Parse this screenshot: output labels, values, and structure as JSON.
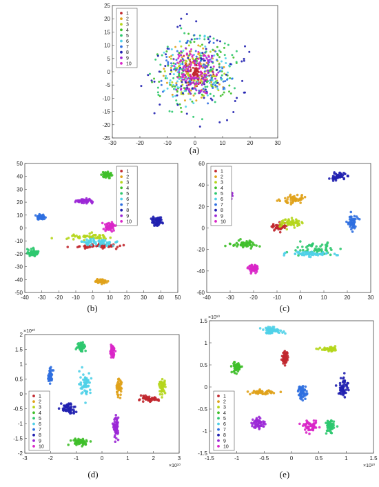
{
  "legend_labels": [
    "1",
    "2",
    "3",
    "4",
    "5",
    "6",
    "7",
    "8",
    "9",
    "10"
  ],
  "colors": [
    "#c1272d",
    "#e0a21b",
    "#b5d61c",
    "#3fbf2a",
    "#2ec86f",
    "#4fd0e8",
    "#2f6fe0",
    "#2020b0",
    "#9b27d6",
    "#d926c8"
  ],
  "chart_data": [
    {
      "type": "scatter",
      "panel_label": "(a)",
      "xlim": [
        -30,
        30
      ],
      "ylim": [
        -25,
        25
      ],
      "xticks": [
        -30,
        -20,
        -10,
        0,
        10,
        20,
        30
      ],
      "yticks": [
        25,
        20,
        15,
        10,
        5,
        0,
        -5,
        -10,
        -15,
        -20,
        -25
      ],
      "x_exponent": "",
      "y_exponent": "",
      "legend_position": "top-left",
      "layout": "radial",
      "clusters": [
        {
          "label": "1",
          "center": [
            0,
            0
          ],
          "radius": 3
        },
        {
          "label": "2",
          "center": [
            0,
            0
          ],
          "radius": 11
        },
        {
          "label": "3",
          "center": [
            0,
            0
          ],
          "radius": 10
        },
        {
          "label": "4",
          "center": [
            0,
            0
          ],
          "radius": 15
        },
        {
          "label": "5",
          "center": [
            0,
            0
          ],
          "radius": 17
        },
        {
          "label": "6",
          "center": [
            0,
            0
          ],
          "radius": 13
        },
        {
          "label": "7",
          "center": [
            0,
            0
          ],
          "radius": 13
        },
        {
          "label": "8",
          "center": [
            0,
            0
          ],
          "radius": 20
        },
        {
          "label": "9",
          "center": [
            0,
            0
          ],
          "radius": 9
        },
        {
          "label": "10",
          "center": [
            0,
            0
          ],
          "radius": 8
        }
      ]
    },
    {
      "type": "scatter",
      "panel_label": "(b)",
      "xlim": [
        -40,
        50
      ],
      "ylim": [
        -50,
        50
      ],
      "xticks": [
        -40,
        -30,
        -20,
        -10,
        0,
        10,
        20,
        30,
        40,
        50
      ],
      "yticks": [
        50,
        40,
        30,
        20,
        10,
        0,
        -10,
        -20,
        -30,
        -40,
        -50
      ],
      "x_exponent": "",
      "y_exponent": "",
      "legend_position": "top-right",
      "clusters": [
        {
          "label": "1",
          "center": [
            2,
            -14
          ],
          "spread": [
            12,
            1.5
          ]
        },
        {
          "label": "2",
          "center": [
            5,
            -41
          ],
          "spread": [
            3,
            1.5
          ]
        },
        {
          "label": "3",
          "center": [
            -2,
            -7
          ],
          "spread": [
            10,
            2
          ]
        },
        {
          "label": "4",
          "center": [
            8,
            41
          ],
          "spread": [
            3,
            2
          ]
        },
        {
          "label": "5",
          "center": [
            -35,
            -19
          ],
          "spread": [
            4,
            3
          ]
        },
        {
          "label": "6",
          "center": [
            4,
            -11
          ],
          "spread": [
            10,
            2
          ]
        },
        {
          "label": "7",
          "center": [
            -31,
            8
          ],
          "spread": [
            2.5,
            2
          ]
        },
        {
          "label": "8",
          "center": [
            38,
            5
          ],
          "spread": [
            3,
            3
          ]
        },
        {
          "label": "9",
          "center": [
            -6,
            21
          ],
          "spread": [
            5,
            1.5
          ]
        },
        {
          "label": "10",
          "center": [
            10,
            1
          ],
          "spread": [
            3,
            3
          ]
        }
      ]
    },
    {
      "type": "scatter",
      "panel_label": "(c)",
      "xlim": [
        -40,
        30
      ],
      "ylim": [
        -60,
        60
      ],
      "xticks": [
        -40,
        -30,
        -20,
        -10,
        0,
        10,
        20,
        30
      ],
      "yticks": [
        60,
        40,
        20,
        0,
        -20,
        -40,
        -60
      ],
      "x_exponent": "",
      "y_exponent": "",
      "legend_position": "top-left",
      "clusters": [
        {
          "label": "1",
          "center": [
            -9,
            1
          ],
          "spread": [
            2.5,
            3
          ]
        },
        {
          "label": "2",
          "center": [
            -3,
            27
          ],
          "spread": [
            4,
            4
          ]
        },
        {
          "label": "3",
          "center": [
            -4,
            5
          ],
          "spread": [
            4,
            3
          ]
        },
        {
          "label": "4",
          "center": [
            -24,
            -15
          ],
          "spread": [
            5,
            3
          ]
        },
        {
          "label": "5",
          "center": [
            6,
            -20
          ],
          "spread": [
            9,
            5
          ]
        },
        {
          "label": "6",
          "center": [
            4,
            -24
          ],
          "spread": [
            8,
            2
          ]
        },
        {
          "label": "7",
          "center": [
            22,
            5
          ],
          "spread": [
            2,
            6
          ]
        },
        {
          "label": "8",
          "center": [
            16,
            48
          ],
          "spread": [
            3,
            3
          ]
        },
        {
          "label": "9",
          "center": [
            -31,
            31
          ],
          "spread": [
            2,
            4
          ]
        },
        {
          "label": "10",
          "center": [
            -20,
            -38
          ],
          "spread": [
            2,
            3
          ]
        }
      ]
    },
    {
      "type": "scatter",
      "panel_label": "(d)",
      "xlim": [
        -3,
        3
      ],
      "ylim": [
        -2,
        2
      ],
      "xticks": [
        -3,
        -2,
        -1,
        0,
        1,
        2,
        3
      ],
      "yticks": [
        2,
        1.5,
        1,
        0.5,
        0,
        -0.5,
        -1,
        -1.5,
        -2
      ],
      "x_exponent": "×10¹⁰",
      "y_exponent": "×10¹⁰",
      "legend_position": "bottom-left",
      "clusters": [
        {
          "label": "1",
          "center": [
            1.8,
            -0.18
          ],
          "spread": [
            0.35,
            0.08
          ]
        },
        {
          "label": "2",
          "center": [
            0.65,
            0.22
          ],
          "spread": [
            0.1,
            0.25
          ]
        },
        {
          "label": "3",
          "center": [
            2.35,
            0.25
          ],
          "spread": [
            0.1,
            0.2
          ]
        },
        {
          "label": "4",
          "center": [
            -0.85,
            -1.62
          ],
          "spread": [
            0.35,
            0.1
          ]
        },
        {
          "label": "5",
          "center": [
            -0.8,
            1.6
          ],
          "spread": [
            0.15,
            0.15
          ]
        },
        {
          "label": "6",
          "center": [
            -0.65,
            0.35
          ],
          "spread": [
            0.2,
            0.35
          ]
        },
        {
          "label": "7",
          "center": [
            -2,
            0.6
          ],
          "spread": [
            0.08,
            0.2
          ]
        },
        {
          "label": "8",
          "center": [
            -1.3,
            -0.5
          ],
          "spread": [
            0.25,
            0.2
          ]
        },
        {
          "label": "9",
          "center": [
            0.55,
            -1.15
          ],
          "spread": [
            0.08,
            0.3
          ]
        },
        {
          "label": "10",
          "center": [
            0.4,
            1.45
          ],
          "spread": [
            0.08,
            0.2
          ]
        }
      ]
    },
    {
      "type": "scatter",
      "panel_label": "(e)",
      "xlim": [
        -1.5,
        1.5
      ],
      "ylim": [
        -1.5,
        1.5
      ],
      "xticks": [
        -1.5,
        -1,
        -0.5,
        0,
        0.5,
        1,
        1.5
      ],
      "yticks": [
        1.5,
        1,
        0.5,
        0,
        -0.5,
        -1,
        -1.5
      ],
      "x_exponent": "×10¹⁰",
      "y_exponent": "×10¹⁰",
      "legend_position": "bottom-left",
      "clusters": [
        {
          "label": "1",
          "center": [
            -0.12,
            0.65
          ],
          "spread": [
            0.05,
            0.12
          ]
        },
        {
          "label": "2",
          "center": [
            -0.55,
            -0.12
          ],
          "spread": [
            0.18,
            0.04
          ]
        },
        {
          "label": "3",
          "center": [
            0.7,
            0.85
          ],
          "spread": [
            0.15,
            0.04
          ]
        },
        {
          "label": "4",
          "center": [
            -1.0,
            0.45
          ],
          "spread": [
            0.08,
            0.12
          ]
        },
        {
          "label": "5",
          "center": [
            0.7,
            -0.9
          ],
          "spread": [
            0.07,
            0.15
          ]
        },
        {
          "label": "6",
          "center": [
            -0.35,
            1.28
          ],
          "spread": [
            0.18,
            0.06
          ]
        },
        {
          "label": "7",
          "center": [
            0.2,
            -0.12
          ],
          "spread": [
            0.07,
            0.15
          ]
        },
        {
          "label": "8",
          "center": [
            0.95,
            0.0
          ],
          "spread": [
            0.08,
            0.22
          ]
        },
        {
          "label": "9",
          "center": [
            -0.6,
            -0.82
          ],
          "spread": [
            0.12,
            0.12
          ]
        },
        {
          "label": "10",
          "center": [
            0.35,
            -0.9
          ],
          "spread": [
            0.12,
            0.1
          ]
        }
      ]
    }
  ]
}
